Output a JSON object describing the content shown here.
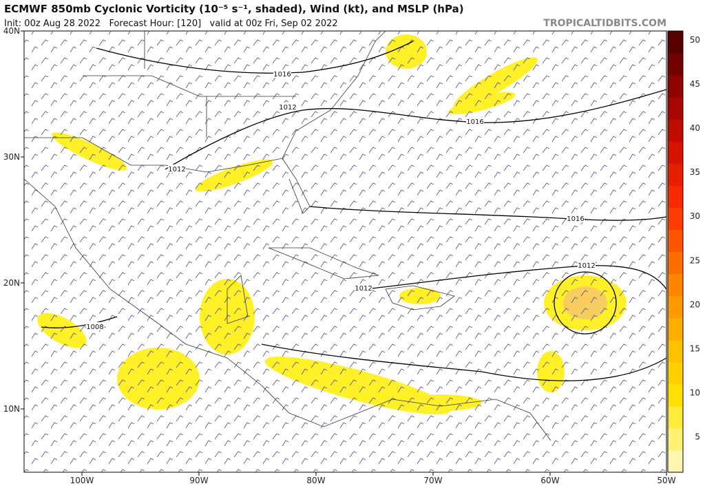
{
  "header": {
    "title": "ECMWF 850mb Cyclonic Vorticity (10⁻⁵ s⁻¹, shaded), Wind (kt), and MSLP (hPa)",
    "subtitle": "Init: 00z Aug 28 2022   Forecast Hour: [120]   valid at 00z Fri, Sep 02 2022",
    "watermark": "TROPICALTIDBITS.COM"
  },
  "map": {
    "lat_labels": [
      "40N",
      "30N",
      "20N",
      "10N"
    ],
    "lon_labels": [
      "100W",
      "90W",
      "80W",
      "70W",
      "60W",
      "50W"
    ],
    "isobar_labels": [
      "1016",
      "1012",
      "1016",
      "1012",
      "1016",
      "1012",
      "1012",
      "1008"
    ]
  },
  "colorbar": {
    "ticks": [
      5,
      10,
      15,
      20,
      25,
      30,
      35,
      40,
      45,
      50
    ]
  }
}
